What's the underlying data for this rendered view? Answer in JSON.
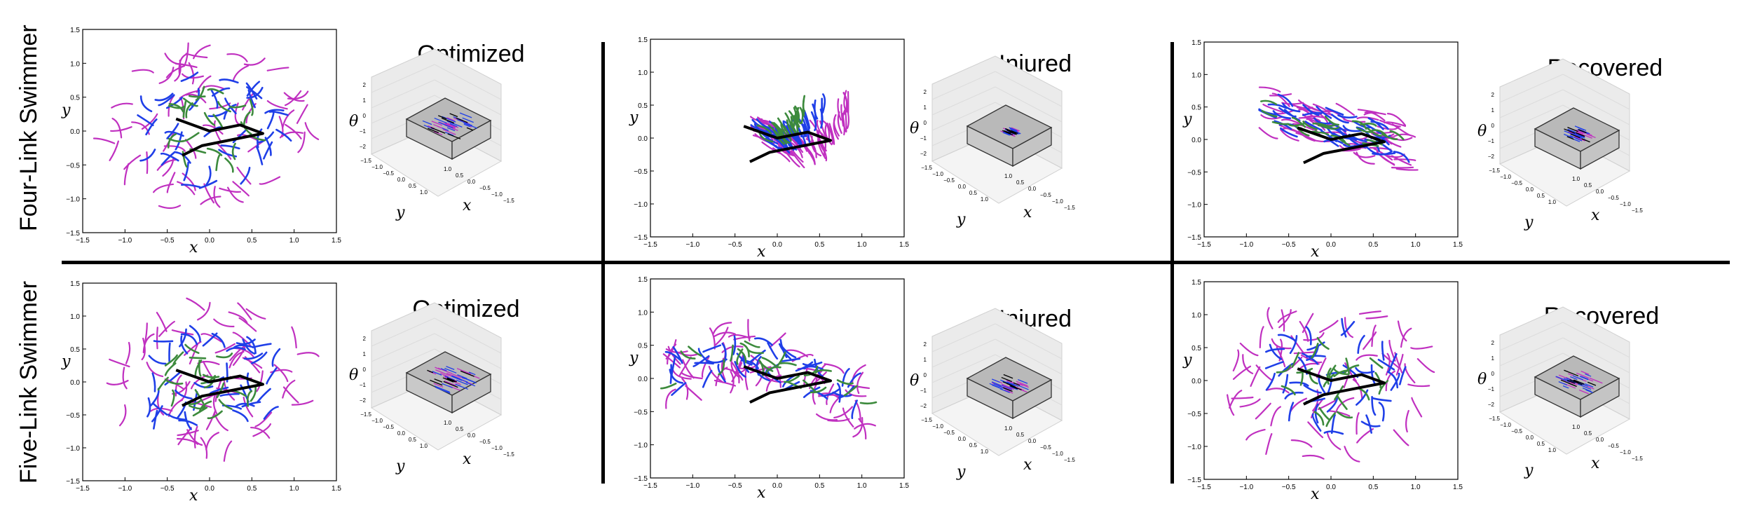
{
  "rows": [
    {
      "label": "Four-Link Swimmer"
    },
    {
      "label": "Five-Link Swimmer"
    }
  ],
  "columns": [
    {
      "title": "Optimized"
    },
    {
      "title": "Injured"
    },
    {
      "title": "Recovered"
    }
  ],
  "axis_labels": {
    "x": "x",
    "y": "y",
    "theta": "θ"
  },
  "plot2d_ticks": {
    "x": [
      "−1.5",
      "−1.0",
      "−0.5",
      "0.0",
      "0.5",
      "1.0",
      "1.5"
    ],
    "y": [
      "1.5",
      "1.0",
      "0.5",
      "0.0",
      "−0.5",
      "−1.0",
      "−1.5"
    ]
  },
  "plot3d_ticks": {
    "theta": [
      "2",
      "1",
      "0",
      "−1",
      "−2"
    ],
    "y": [
      "−1.5",
      "−1.0",
      "−0.5",
      "0.0",
      "0.5",
      "1.0"
    ],
    "x": [
      "−1.5",
      "−1.0",
      "−0.5",
      "0.0",
      "0.5",
      "1.0"
    ]
  },
  "colors": {
    "magenta": "#c030c0",
    "blue": "#1f3fe8",
    "green": "#3c8a3c",
    "black": "#000000",
    "box": "#b9b9b9",
    "pane": "#ebebeb"
  }
}
